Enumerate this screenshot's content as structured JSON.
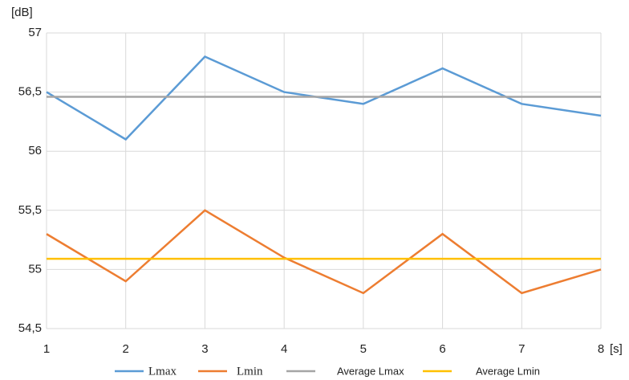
{
  "chart_data": {
    "type": "line",
    "x": [
      1,
      2,
      3,
      4,
      5,
      6,
      7,
      8
    ],
    "xlim": [
      1,
      8
    ],
    "xticks": [
      1,
      2,
      3,
      4,
      5,
      6,
      7,
      8
    ],
    "ylim": [
      54.5,
      57
    ],
    "yticks": [
      {
        "value": 54.5,
        "label": "54,5"
      },
      55,
      {
        "value": 55.5,
        "label": "55,5"
      },
      56,
      {
        "value": 56.5,
        "label": "56,5"
      },
      57
    ],
    "y_label": "[dB]",
    "x_label": "[s]",
    "grid": true,
    "legend": "bottom",
    "series": [
      {
        "name": "Lmax",
        "color": "#5b9bd5",
        "values": [
          56.5,
          56.1,
          56.8,
          56.5,
          56.4,
          56.7,
          56.4,
          56.3
        ]
      },
      {
        "name": "Lmin",
        "color": "#ed7d31",
        "values": [
          55.3,
          54.9,
          55.5,
          55.1,
          54.8,
          55.3,
          54.8,
          55.0
        ]
      },
      {
        "name": "Average Lmax",
        "color": "#a5a5a5",
        "values": [
          56.46,
          56.46,
          56.46,
          56.46,
          56.46,
          56.46,
          56.46,
          56.46
        ]
      },
      {
        "name": "Average Lmin",
        "color": "#ffc000",
        "values": [
          55.09,
          55.09,
          55.09,
          55.09,
          55.09,
          55.09,
          55.09,
          55.09
        ]
      }
    ]
  }
}
